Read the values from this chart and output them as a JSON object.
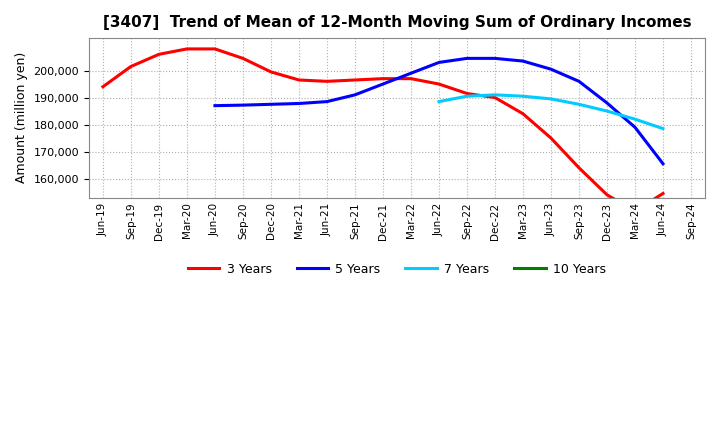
{
  "title": "[3407]  Trend of Mean of 12-Month Moving Sum of Ordinary Incomes",
  "ylabel": "Amount (million yen)",
  "ylim": [
    153000,
    212000
  ],
  "yticks": [
    160000,
    170000,
    180000,
    190000,
    200000
  ],
  "x_labels": [
    "Jun-19",
    "Sep-19",
    "Dec-19",
    "Mar-20",
    "Jun-20",
    "Sep-20",
    "Dec-20",
    "Mar-21",
    "Jun-21",
    "Sep-21",
    "Dec-21",
    "Mar-22",
    "Jun-22",
    "Sep-22",
    "Dec-22",
    "Mar-23",
    "Jun-23",
    "Sep-23",
    "Dec-23",
    "Mar-24",
    "Jun-24",
    "Sep-24"
  ],
  "series": {
    "3 Years": {
      "color": "#ff0000",
      "values": [
        194000,
        201500,
        206000,
        208000,
        208000,
        204500,
        199500,
        196500,
        196000,
        196500,
        197000,
        197000,
        195000,
        191500,
        190000,
        184000,
        175000,
        164000,
        154000,
        148000,
        154500,
        null
      ]
    },
    "5 Years": {
      "color": "#0000ff",
      "values": [
        null,
        null,
        null,
        null,
        187000,
        187200,
        187500,
        187800,
        188500,
        191000,
        195000,
        199000,
        203000,
        204500,
        204500,
        203500,
        200500,
        196000,
        188000,
        179000,
        165500,
        null
      ]
    },
    "7 Years": {
      "color": "#00ccff",
      "values": [
        null,
        null,
        null,
        null,
        null,
        null,
        null,
        null,
        null,
        null,
        null,
        null,
        188500,
        190500,
        191000,
        190500,
        189500,
        187500,
        185000,
        182000,
        178500,
        null
      ]
    },
    "10 Years": {
      "color": "#008000",
      "values": [
        null,
        null,
        null,
        null,
        null,
        null,
        null,
        null,
        null,
        null,
        null,
        null,
        null,
        null,
        null,
        null,
        null,
        null,
        null,
        null,
        null,
        null
      ]
    }
  },
  "background_color": "#ffffff",
  "plot_bg_color": "#ffffff",
  "grid_color": "#b0b0b0",
  "linewidth": 2.2,
  "title_fontsize": 11,
  "ylabel_fontsize": 9,
  "tick_fontsize": 8,
  "xtick_fontsize": 7.5,
  "legend_fontsize": 9
}
